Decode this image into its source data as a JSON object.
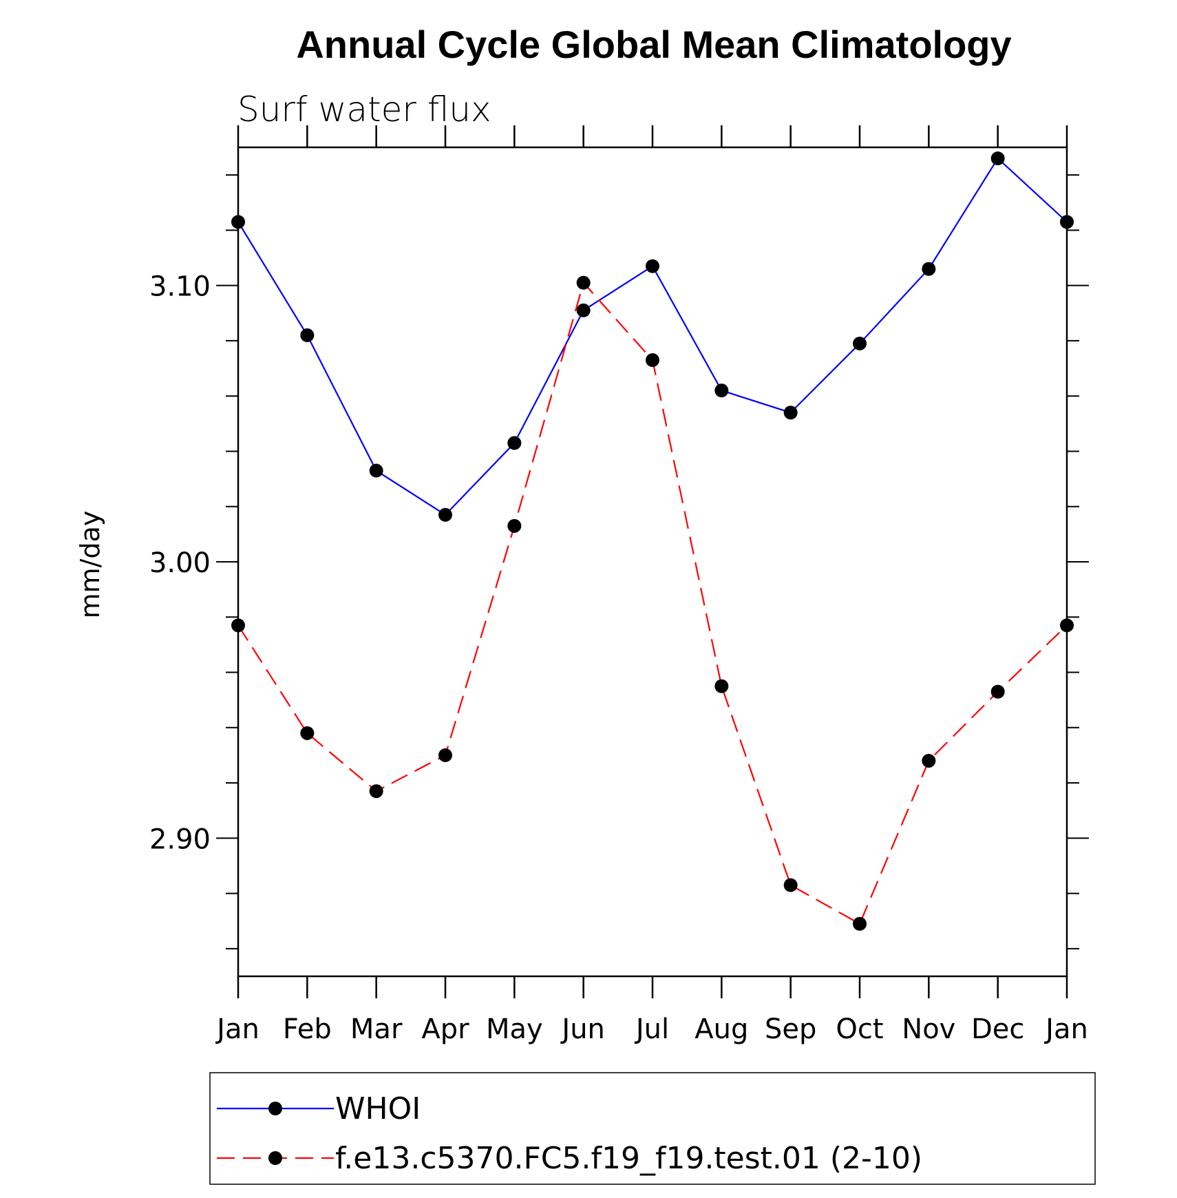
{
  "chart_data": {
    "type": "line",
    "title": "Annual Cycle Global Mean Climatology",
    "subtitle": "Surf water flux",
    "xlabel": "",
    "ylabel": "mm/day",
    "categories": [
      "Jan",
      "Feb",
      "Mar",
      "Apr",
      "May",
      "Jun",
      "Jul",
      "Aug",
      "Sep",
      "Oct",
      "Nov",
      "Dec",
      "Jan"
    ],
    "ylim": [
      2.85,
      3.15
    ],
    "yticks": [
      2.9,
      3.0,
      3.1
    ],
    "ytick_labels": [
      "2.90",
      "3.00",
      "3.10"
    ],
    "grid": false,
    "legend_position": "bottom",
    "series": [
      {
        "name": "WHOI",
        "color": "#0000ff",
        "dash": "solid",
        "values": [
          3.123,
          3.082,
          3.033,
          3.017,
          3.043,
          3.091,
          3.107,
          3.062,
          3.054,
          3.079,
          3.106,
          3.146,
          3.123
        ]
      },
      {
        "name": "f.e13.c5370.FC5.f19_f19.test.01 (2-10)",
        "color": "#ff0000",
        "dash": "dashed",
        "values": [
          2.977,
          2.938,
          2.917,
          2.93,
          3.013,
          3.101,
          3.073,
          2.955,
          2.883,
          2.869,
          2.928,
          2.953,
          2.977
        ]
      }
    ]
  }
}
